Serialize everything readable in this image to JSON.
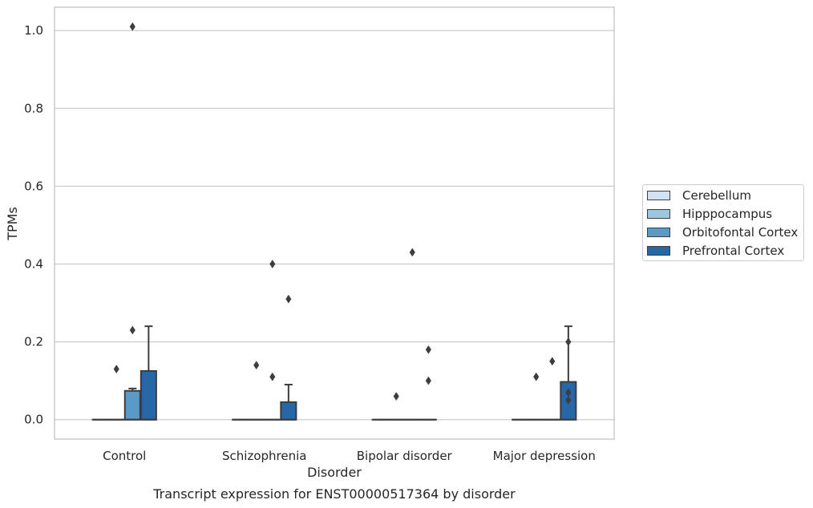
{
  "chart_data": {
    "type": "box",
    "title": "Transcript expression for ENST00000517364 by disorder",
    "xlabel": "Disorder",
    "ylabel": "TPMs",
    "ylim": [
      -0.05,
      1.06
    ],
    "yticks": [
      "0.0",
      "0.2",
      "0.4",
      "0.6",
      "0.8",
      "1.0"
    ],
    "grid": "horizontal",
    "legend_position": "right",
    "categories": [
      "Control",
      "Schizophrenia",
      "Bipolar disorder",
      "Major depression"
    ],
    "series": [
      {
        "name": "Cerebellum",
        "color": "#d1e2f2",
        "boxes": [
          {
            "q1": 0,
            "median": 0,
            "q3": 0,
            "whislo": 0,
            "whishi": 0,
            "fliers": []
          },
          {
            "q1": 0,
            "median": 0,
            "q3": 0,
            "whislo": 0,
            "whishi": 0,
            "fliers": []
          },
          {
            "q1": 0,
            "median": 0,
            "q3": 0,
            "whislo": 0,
            "whishi": 0,
            "fliers": []
          },
          {
            "q1": 0,
            "median": 0,
            "q3": 0,
            "whislo": 0,
            "whishi": 0,
            "fliers": []
          }
        ]
      },
      {
        "name": "Hipppocampus",
        "color": "#9ac8e0",
        "boxes": [
          {
            "q1": 0,
            "median": 0,
            "q3": 0,
            "whislo": 0,
            "whishi": 0,
            "fliers": [
              0.13
            ]
          },
          {
            "q1": 0,
            "median": 0,
            "q3": 0,
            "whislo": 0,
            "whishi": 0,
            "fliers": [
              0.14
            ]
          },
          {
            "q1": 0,
            "median": 0,
            "q3": 0,
            "whislo": 0,
            "whishi": 0,
            "fliers": [
              0.06
            ]
          },
          {
            "q1": 0,
            "median": 0,
            "q3": 0,
            "whislo": 0,
            "whishi": 0,
            "fliers": [
              0.11
            ]
          }
        ]
      },
      {
        "name": "Orbitofontal Cortex",
        "color": "#5a9ac8",
        "boxes": [
          {
            "q1": 0,
            "median": 0,
            "q3": 0.074,
            "whislo": 0,
            "whishi": 0.08,
            "fliers": [
              0.23,
              1.01
            ]
          },
          {
            "q1": 0,
            "median": 0,
            "q3": 0,
            "whislo": 0,
            "whishi": 0,
            "fliers": [
              0.11,
              0.4
            ]
          },
          {
            "q1": 0,
            "median": 0,
            "q3": 0,
            "whislo": 0,
            "whishi": 0,
            "fliers": [
              0.43
            ]
          },
          {
            "q1": 0,
            "median": 0,
            "q3": 0,
            "whislo": 0,
            "whishi": 0,
            "fliers": [
              0.15
            ]
          }
        ]
      },
      {
        "name": "Prefrontal Cortex",
        "color": "#2767a8",
        "boxes": [
          {
            "q1": 0,
            "median": 0,
            "q3": 0.125,
            "whislo": 0,
            "whishi": 0.24,
            "fliers": []
          },
          {
            "q1": 0,
            "median": 0,
            "q3": 0.045,
            "whislo": 0,
            "whishi": 0.09,
            "fliers": [
              0.31
            ]
          },
          {
            "q1": 0,
            "median": 0,
            "q3": 0,
            "whislo": 0,
            "whishi": 0,
            "fliers": [
              0.1,
              0.18
            ]
          },
          {
            "q1": 0,
            "median": 0,
            "q3": 0.097,
            "whislo": 0,
            "whishi": 0.24,
            "fliers": [
              0.05,
              0.07,
              0.2
            ]
          }
        ]
      }
    ]
  }
}
